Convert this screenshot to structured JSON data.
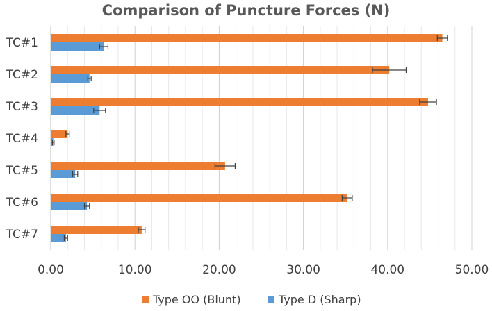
{
  "chart_data": {
    "type": "bar",
    "orientation": "horizontal",
    "title": "Comparison of Puncture Forces (N)",
    "categories": [
      "TC#1",
      "TC#2",
      "TC#3",
      "TC#4",
      "TC#5",
      "TC#6",
      "TC#7"
    ],
    "series": [
      {
        "name": "Type OO (Blunt)",
        "color": "#ED7D31",
        "values": [
          46.5,
          40.2,
          44.8,
          2.0,
          20.7,
          35.2,
          10.8
        ],
        "error": [
          0.6,
          2.0,
          1.0,
          0.2,
          1.2,
          0.6,
          0.4
        ]
      },
      {
        "name": "Type D (Sharp)",
        "color": "#5B9BD5",
        "values": [
          6.3,
          4.6,
          5.8,
          0.3,
          2.9,
          4.3,
          1.8
        ],
        "error": [
          0.5,
          0.2,
          0.7,
          0.1,
          0.3,
          0.3,
          0.2
        ]
      }
    ],
    "xlim": [
      0,
      50
    ],
    "xticks": [
      "0.00",
      "10.00",
      "20.00",
      "30.00",
      "40.00",
      "50.00"
    ],
    "minor_gridlines": true,
    "legend_position": "bottom"
  }
}
